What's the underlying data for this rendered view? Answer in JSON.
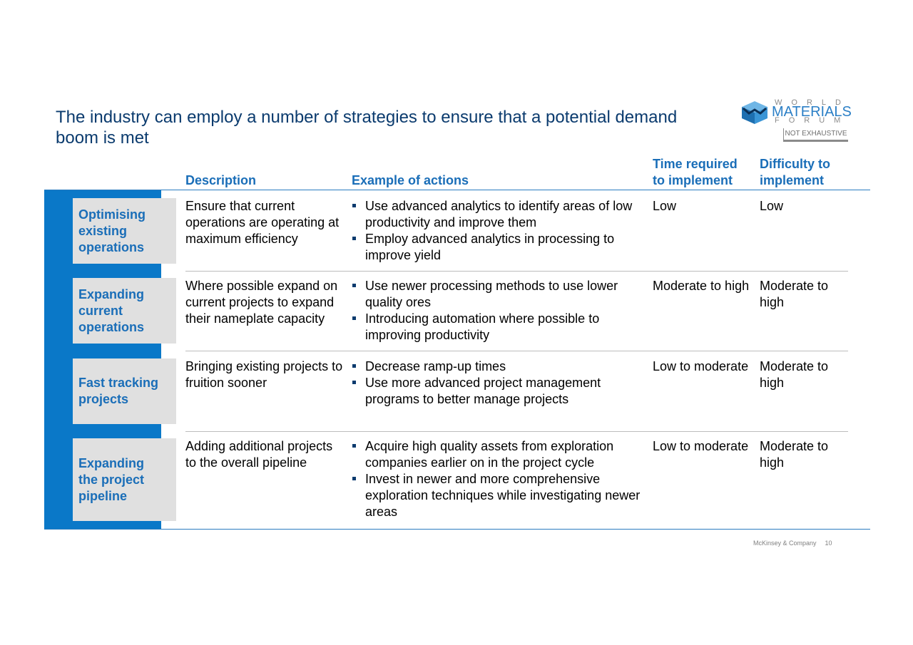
{
  "title": "The industry can employ a number of strategies to ensure that a potential demand boom is met",
  "logo": {
    "line1": "WORLD",
    "line2": "MATERIALS",
    "line3": "FORUM",
    "icon": "cube-icon"
  },
  "tag": "NOT EXHAUSTIVE",
  "columns": {
    "description": "Description",
    "actions": "Example of actions",
    "time": "Time required to implement",
    "difficulty": "Difficulty to implement"
  },
  "rows": [
    {
      "category": "Optimising existing operations",
      "description": "Ensure that current operations are operating at maximum efficiency",
      "actions": [
        "Use advanced analytics to identify areas of low productivity and improve them",
        "Employ advanced analytics in  processing to improve yield"
      ],
      "time": "Low",
      "difficulty": "Low"
    },
    {
      "category": "Expanding current operations",
      "description": "Where possible expand on current projects to expand their nameplate capacity",
      "actions": [
        "Use newer processing methods to use lower quality ores",
        "Introducing automation where possible to improving productivity"
      ],
      "time": "Moderate to high",
      "difficulty": "Moderate to high"
    },
    {
      "category": "Fast tracking projects",
      "description": "Bringing existing projects to fruition sooner",
      "actions": [
        "Decrease ramp-up times",
        "Use more advanced project management programs to better manage projects"
      ],
      "time": "Low to moderate",
      "difficulty": "Moderate to high"
    },
    {
      "category": "Expanding the project pipeline",
      "description": "Adding additional projects to the overall pipeline",
      "actions": [
        "Acquire high quality assets from exploration companies earlier on in the project cycle",
        "Invest in newer and more comprehensive exploration techniques while investigating newer areas"
      ],
      "time": "Low to moderate",
      "difficulty": "Moderate to high"
    }
  ],
  "footer": {
    "company": "McKinsey & Company",
    "page": "10"
  },
  "colors": {
    "title": "#0b3b6e",
    "accent": "#1a6eb8",
    "bar": "#0a78c8",
    "category_bg": "#e0e0e0"
  }
}
